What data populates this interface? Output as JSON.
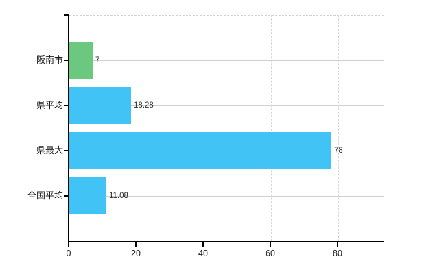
{
  "chart_data": {
    "type": "bar",
    "orientation": "horizontal",
    "title": "",
    "xlabel": "",
    "ylabel": "",
    "categories": [
      "阪南市",
      "県平均",
      "県最大",
      "全国平均"
    ],
    "values": [
      7,
      18.28,
      78,
      11.08
    ],
    "value_labels": [
      "7",
      "18.28",
      "78",
      "11.08"
    ],
    "bar_colors": [
      "#6cc87e",
      "#41c3f5",
      "#41c3f5",
      "#41c3f5"
    ],
    "x_ticks": [
      0,
      20,
      40,
      60,
      80
    ],
    "x_tick_labels": [
      "0",
      "20",
      "40",
      "60",
      "80"
    ],
    "xlim": [
      0,
      93.5
    ],
    "grid": true,
    "legend": "none",
    "colors": {
      "background": "#ffffff",
      "axis": "#000000",
      "h_gridline": "#ccd4cc",
      "v_gridline": "#d6d6d6",
      "top_border": "#d2d2d2",
      "category_text": "#1a1a1a",
      "value_text": "#2b2b2b",
      "tick_text": "#1a1a1a"
    }
  }
}
